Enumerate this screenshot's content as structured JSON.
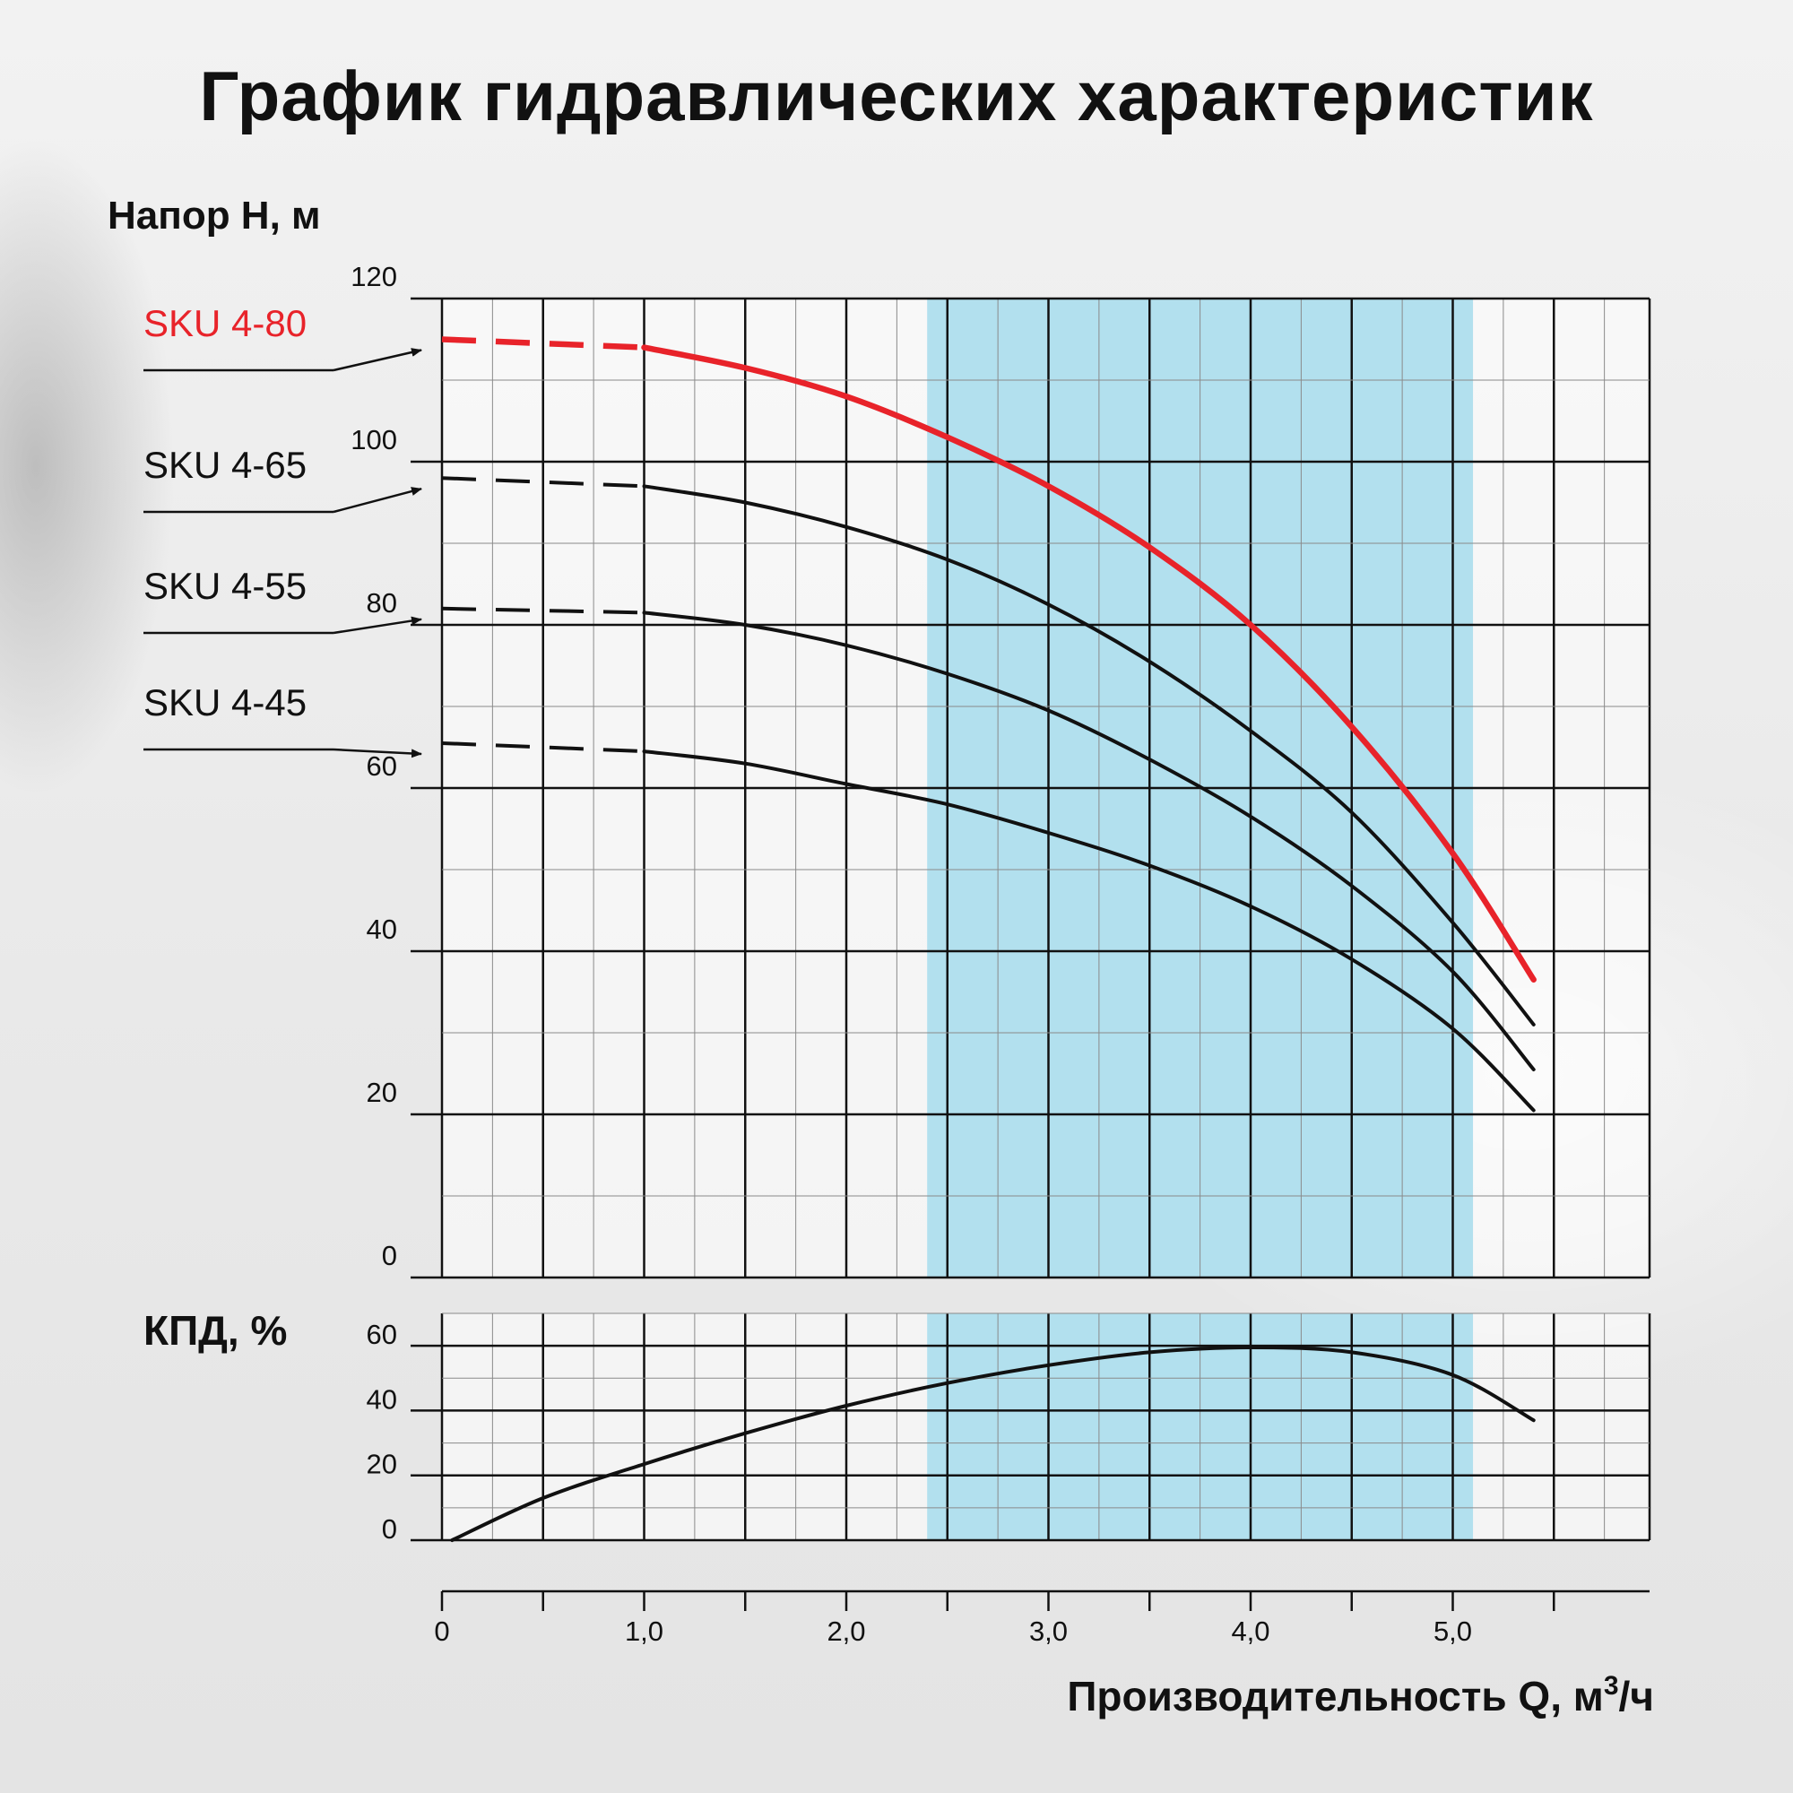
{
  "title": "График гидравлических характеристик",
  "chart_data": [
    {
      "type": "line",
      "ylabel": "Напор H, м",
      "xlim": [
        0,
        6
      ],
      "ylim": [
        0,
        120
      ],
      "y_ticks": [
        "0",
        "20",
        "40",
        "60",
        "80",
        "100",
        "120"
      ],
      "grid": true,
      "highlight_band": {
        "from": 2.4,
        "to": 5.1,
        "color": "#b2e0ee"
      },
      "series": [
        {
          "name": "SKU 4-80",
          "color": "#e8232a",
          "x": [
            0,
            1.0,
            1.5,
            2.0,
            2.5,
            3.0,
            3.5,
            4.0,
            4.5,
            5.0,
            5.4
          ],
          "y": [
            115,
            114,
            111.5,
            108,
            103,
            97,
            89.5,
            80,
            67.5,
            52,
            36.5
          ]
        },
        {
          "name": "SKU 4-65",
          "color": "#111111",
          "x": [
            0,
            1.0,
            1.5,
            2.0,
            2.5,
            3.0,
            3.5,
            4.0,
            4.5,
            5.0,
            5.4
          ],
          "y": [
            98,
            97,
            95,
            92,
            88,
            82.5,
            75.5,
            67,
            57,
            43.5,
            31
          ]
        },
        {
          "name": "SKU 4-55",
          "color": "#111111",
          "x": [
            0,
            1.0,
            1.5,
            2.0,
            2.5,
            3.0,
            3.5,
            4.0,
            4.5,
            5.0,
            5.4
          ],
          "y": [
            82,
            81.5,
            80,
            77.5,
            74,
            69.5,
            63.5,
            56.5,
            48,
            37.5,
            25.5
          ]
        },
        {
          "name": "SKU 4-45",
          "color": "#111111",
          "x": [
            0,
            1.0,
            1.5,
            2.0,
            2.5,
            3.0,
            3.5,
            4.0,
            4.5,
            5.0,
            5.4
          ],
          "y": [
            65.5,
            64.5,
            63,
            60.5,
            58,
            54.5,
            50.5,
            45.5,
            39,
            30.5,
            20.5
          ]
        }
      ]
    },
    {
      "type": "line",
      "ylabel": "КПД, %",
      "xlabel": "Производительность Q, м",
      "xlabel_sup": "3",
      "xlabel_tail": "/ч",
      "xlim": [
        0,
        6
      ],
      "ylim": [
        0,
        70
      ],
      "y_ticks": [
        "0",
        "20",
        "40",
        "60"
      ],
      "x_ticks": [
        {
          "x": 0,
          "label": "0"
        },
        {
          "x": 1,
          "label": "1,0"
        },
        {
          "x": 2,
          "label": "2,0"
        },
        {
          "x": 3,
          "label": "3,0"
        },
        {
          "x": 4,
          "label": "4,0"
        },
        {
          "x": 5,
          "label": "5,0"
        }
      ],
      "series": [
        {
          "name": "",
          "color": "#111111",
          "x": [
            0.05,
            0.5,
            1.0,
            1.5,
            2.0,
            2.5,
            3.0,
            3.5,
            4.0,
            4.5,
            5.0,
            5.4
          ],
          "y": [
            0,
            13,
            23.5,
            33,
            41.5,
            48.5,
            54,
            58,
            59.5,
            58,
            51,
            37
          ]
        }
      ]
    }
  ]
}
